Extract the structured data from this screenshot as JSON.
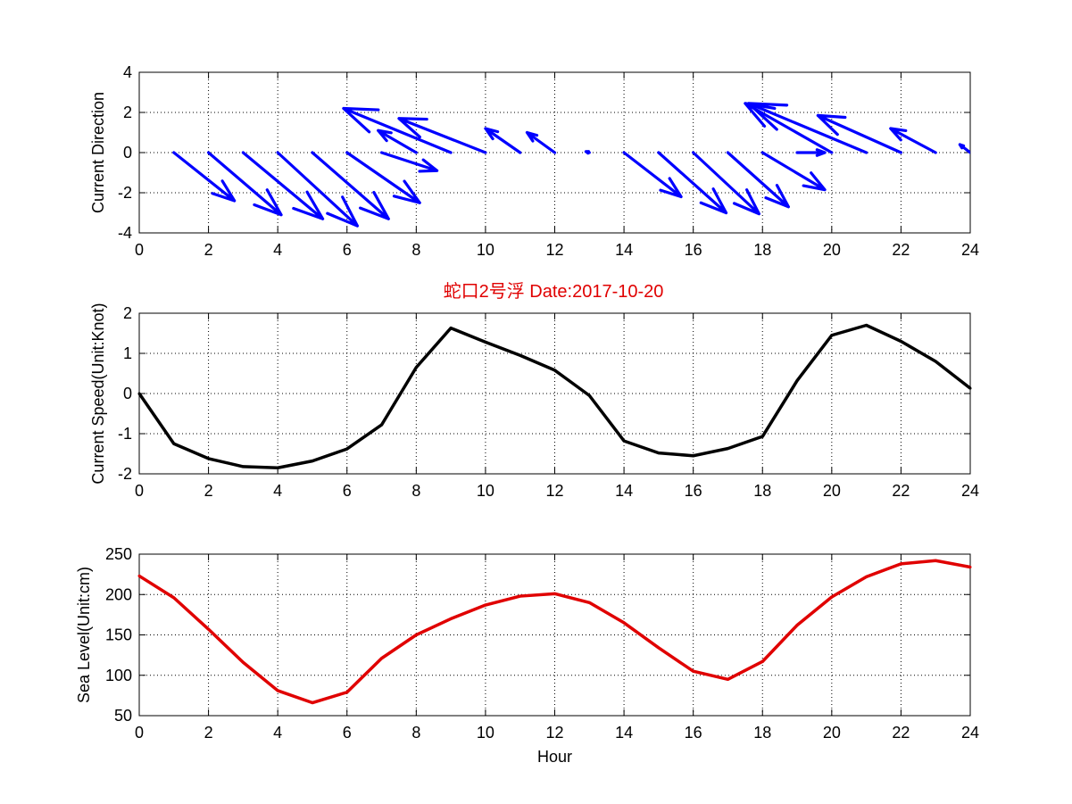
{
  "title": "蛇口2号浮   Date:2017-10-20",
  "colors": {
    "direction": "#0000ff",
    "speed": "#000000",
    "sea_level": "#e00000",
    "title": "#e00000"
  },
  "chart_data": [
    {
      "type": "quiver",
      "ylabel": "Current Direction",
      "xlabel": "",
      "xlim": [
        0,
        24
      ],
      "ylim": [
        -4,
        4
      ],
      "xticks": [
        0,
        2,
        4,
        6,
        8,
        10,
        12,
        14,
        16,
        18,
        20,
        22,
        24
      ],
      "yticks": [
        -4,
        -2,
        0,
        2,
        4
      ],
      "grid": true,
      "arrows": [
        {
          "x": 1,
          "u": 1.75,
          "v": -2.4
        },
        {
          "x": 2,
          "u": 2.1,
          "v": -3.1
        },
        {
          "x": 3,
          "u": 2.3,
          "v": -3.3
        },
        {
          "x": 4,
          "u": 2.3,
          "v": -3.65
        },
        {
          "x": 5,
          "u": 2.2,
          "v": -3.3
        },
        {
          "x": 6,
          "u": 2.1,
          "v": -2.5
        },
        {
          "x": 7,
          "u": 1.6,
          "v": -0.9
        },
        {
          "x": 8,
          "u": -1.1,
          "v": 1.1
        },
        {
          "x": 9,
          "u": -3.1,
          "v": 2.2
        },
        {
          "x": 10,
          "u": -2.5,
          "v": 1.7
        },
        {
          "x": 11,
          "u": -1.0,
          "v": 1.2
        },
        {
          "x": 12,
          "u": -0.8,
          "v": 1.0
        },
        {
          "x": 13,
          "u": -0.1,
          "v": 0.05
        },
        {
          "x": 14,
          "u": 1.65,
          "v": -2.2
        },
        {
          "x": 15,
          "u": 1.95,
          "v": -3.0
        },
        {
          "x": 16,
          "u": 1.9,
          "v": -3.05
        },
        {
          "x": 17,
          "u": 1.75,
          "v": -2.7
        },
        {
          "x": 18,
          "u": 1.8,
          "v": -1.85
        },
        {
          "x": 19,
          "u": 0.8,
          "v": 0.0
        },
        {
          "x": 20,
          "u": -2.5,
          "v": 2.45
        },
        {
          "x": 21,
          "u": -3.4,
          "v": 2.45
        },
        {
          "x": 22,
          "u": -2.4,
          "v": 1.85
        },
        {
          "x": 23,
          "u": -1.3,
          "v": 1.2
        },
        {
          "x": 24,
          "u": -0.3,
          "v": 0.4
        }
      ]
    },
    {
      "type": "line",
      "ylabel": "Current Speed(Unit:Knot)",
      "xlabel": "",
      "xlim": [
        0,
        24
      ],
      "ylim": [
        -2,
        2
      ],
      "xticks": [
        0,
        2,
        4,
        6,
        8,
        10,
        12,
        14,
        16,
        18,
        20,
        22,
        24
      ],
      "yticks": [
        -2,
        -1,
        0,
        1,
        2
      ],
      "grid": true,
      "x": [
        0,
        1,
        2,
        3,
        4,
        5,
        6,
        7,
        8,
        9,
        10,
        11,
        12,
        13,
        14,
        15,
        16,
        17,
        18,
        19,
        20,
        21,
        22,
        23,
        24
      ],
      "y": [
        0,
        -1.25,
        -1.62,
        -1.82,
        -1.85,
        -1.68,
        -1.38,
        -0.78,
        0.65,
        1.63,
        1.28,
        0.95,
        0.58,
        -0.05,
        -1.18,
        -1.48,
        -1.55,
        -1.37,
        -1.07,
        0.32,
        1.45,
        1.7,
        1.3,
        0.8,
        0.13
      ],
      "series": [
        {
          "values_key": "y"
        }
      ]
    },
    {
      "type": "line",
      "ylabel": "Sea Level(Unit:cm)",
      "xlabel": "Hour",
      "xlim": [
        0,
        24
      ],
      "ylim": [
        50,
        250
      ],
      "xticks": [
        0,
        2,
        4,
        6,
        8,
        10,
        12,
        14,
        16,
        18,
        20,
        22,
        24
      ],
      "yticks": [
        50,
        100,
        150,
        200,
        250
      ],
      "grid": true,
      "x": [
        0,
        1,
        2,
        3,
        4,
        5,
        6,
        7,
        8,
        9,
        10,
        11,
        12,
        13,
        14,
        15,
        16,
        17,
        18,
        19,
        20,
        21,
        22,
        23,
        24
      ],
      "y": [
        223,
        196,
        157,
        116,
        81,
        66,
        79,
        121,
        150,
        170,
        187,
        198,
        201,
        190,
        165,
        134,
        105,
        95,
        117,
        162,
        197,
        222,
        238,
        242,
        234
      ],
      "series": [
        {
          "values_key": "y"
        }
      ]
    }
  ]
}
